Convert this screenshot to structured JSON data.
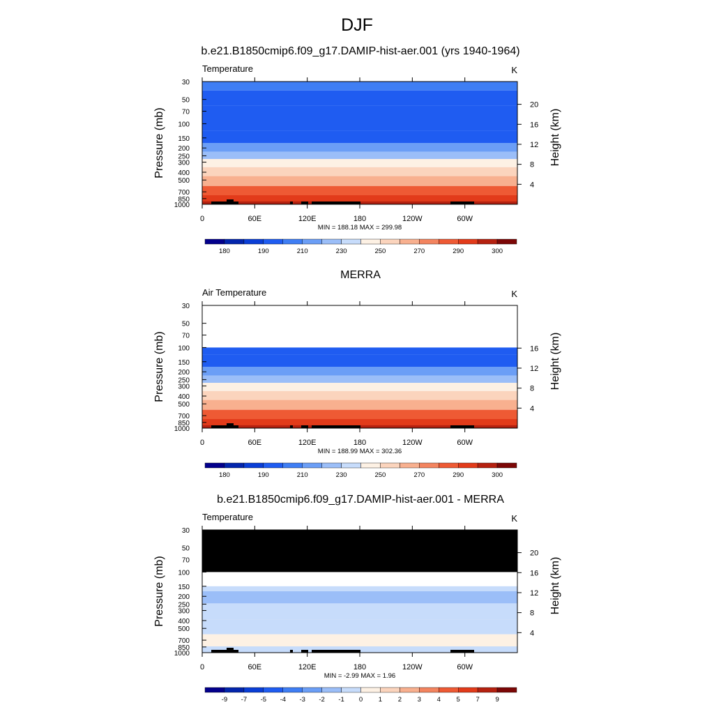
{
  "page": {
    "title": "DJF"
  },
  "colorbar_colors": [
    "#03008c",
    "#0325ac",
    "#0a3ed6",
    "#1f5cf1",
    "#3f7ef4",
    "#6b9ef6",
    "#9bbef8",
    "#c7dcfb",
    "#fdf1e4",
    "#fbd4bd",
    "#f8b08f",
    "#f3845f",
    "#ee5a34",
    "#e23b1a",
    "#b52110",
    "#7c0706"
  ],
  "chart_data": [
    {
      "type": "heatmap",
      "title": "b.e21.B1850cmip6.f09_g17.DAMIP-hist-aer.001 (yrs 1940-1964)",
      "left_label": "Temperature",
      "units": "K",
      "ylabel": "Pressure (mb)",
      "ylabel_right": "Height (km)",
      "x_ticks": [
        "0",
        "60E",
        "120E",
        "180",
        "120W",
        "60W"
      ],
      "y_ticks": [
        "30",
        "50",
        "70",
        "100",
        "150",
        "200",
        "250",
        "300",
        "400",
        "500",
        "700",
        "850",
        "1000"
      ],
      "height_ticks": [
        "20",
        "16",
        "12",
        "8",
        "4"
      ],
      "stats": "MIN = 188.18  MAX = 299.98",
      "colorbar_labels": [
        "180",
        "190",
        "210",
        "230",
        "250",
        "270",
        "290",
        "300"
      ],
      "levels": [
        {
          "p": 30,
          "bin": 4
        },
        {
          "p": 50,
          "bin": 3
        },
        {
          "p": 70,
          "bin": 3
        },
        {
          "p": 100,
          "bin": 3
        },
        {
          "p": 150,
          "bin": 3
        },
        {
          "p": 200,
          "bin": 5
        },
        {
          "p": 250,
          "bin": 6
        },
        {
          "p": 300,
          "bin": 8
        },
        {
          "p": 400,
          "bin": 9
        },
        {
          "p": 500,
          "bin": 10
        },
        {
          "p": 700,
          "bin": 12
        },
        {
          "p": 850,
          "bin": 13
        },
        {
          "p": 1000,
          "bin": 14
        }
      ]
    },
    {
      "type": "heatmap",
      "title": "MERRA",
      "left_label": "Air Temperature",
      "units": "K",
      "ylabel": "Pressure (mb)",
      "ylabel_right": "Height (km)",
      "x_ticks": [
        "0",
        "60E",
        "120E",
        "180",
        "120W",
        "60W"
      ],
      "y_ticks": [
        "30",
        "50",
        "70",
        "100",
        "150",
        "200",
        "250",
        "300",
        "400",
        "500",
        "700",
        "850",
        "1000"
      ],
      "height_ticks": [
        "16",
        "12",
        "8",
        "4"
      ],
      "stats": "MIN = 188.99  MAX = 302.36",
      "colorbar_labels": [
        "180",
        "190",
        "210",
        "230",
        "250",
        "270",
        "290",
        "300"
      ],
      "levels": [
        {
          "p": 100,
          "bin": 3
        },
        {
          "p": 150,
          "bin": 3
        },
        {
          "p": 200,
          "bin": 5
        },
        {
          "p": 250,
          "bin": 6
        },
        {
          "p": 300,
          "bin": 8
        },
        {
          "p": 400,
          "bin": 9
        },
        {
          "p": 500,
          "bin": 10
        },
        {
          "p": 700,
          "bin": 12
        },
        {
          "p": 850,
          "bin": 13
        },
        {
          "p": 1000,
          "bin": 14
        }
      ]
    },
    {
      "type": "heatmap",
      "title": "b.e21.B1850cmip6.f09_g17.DAMIP-hist-aer.001 - MERRA",
      "left_label": "Temperature",
      "units": "K",
      "ylabel": "Pressure (mb)",
      "ylabel_right": "Height (km)",
      "x_ticks": [
        "0",
        "60E",
        "120E",
        "180",
        "120W",
        "60W"
      ],
      "y_ticks": [
        "30",
        "50",
        "70",
        "100",
        "150",
        "200",
        "250",
        "300",
        "400",
        "500",
        "700",
        "850",
        "1000"
      ],
      "height_ticks": [
        "20",
        "16",
        "12",
        "8",
        "4"
      ],
      "stats": "MIN =  -2.99  MAX =   1.96",
      "colorbar_labels": [
        "-9",
        "-7",
        "-5",
        "-4",
        "-3",
        "-2",
        "-1",
        "0",
        "1",
        "2",
        "3",
        "4",
        "5",
        "7",
        "9"
      ],
      "levels": [
        {
          "p": 150,
          "bin": 7
        },
        {
          "p": 200,
          "bin": 6
        },
        {
          "p": 300,
          "bin": 7
        },
        {
          "p": 500,
          "bin": 7
        },
        {
          "p": 700,
          "bin": 8
        },
        {
          "p": 1000,
          "bin": 7
        }
      ]
    }
  ]
}
